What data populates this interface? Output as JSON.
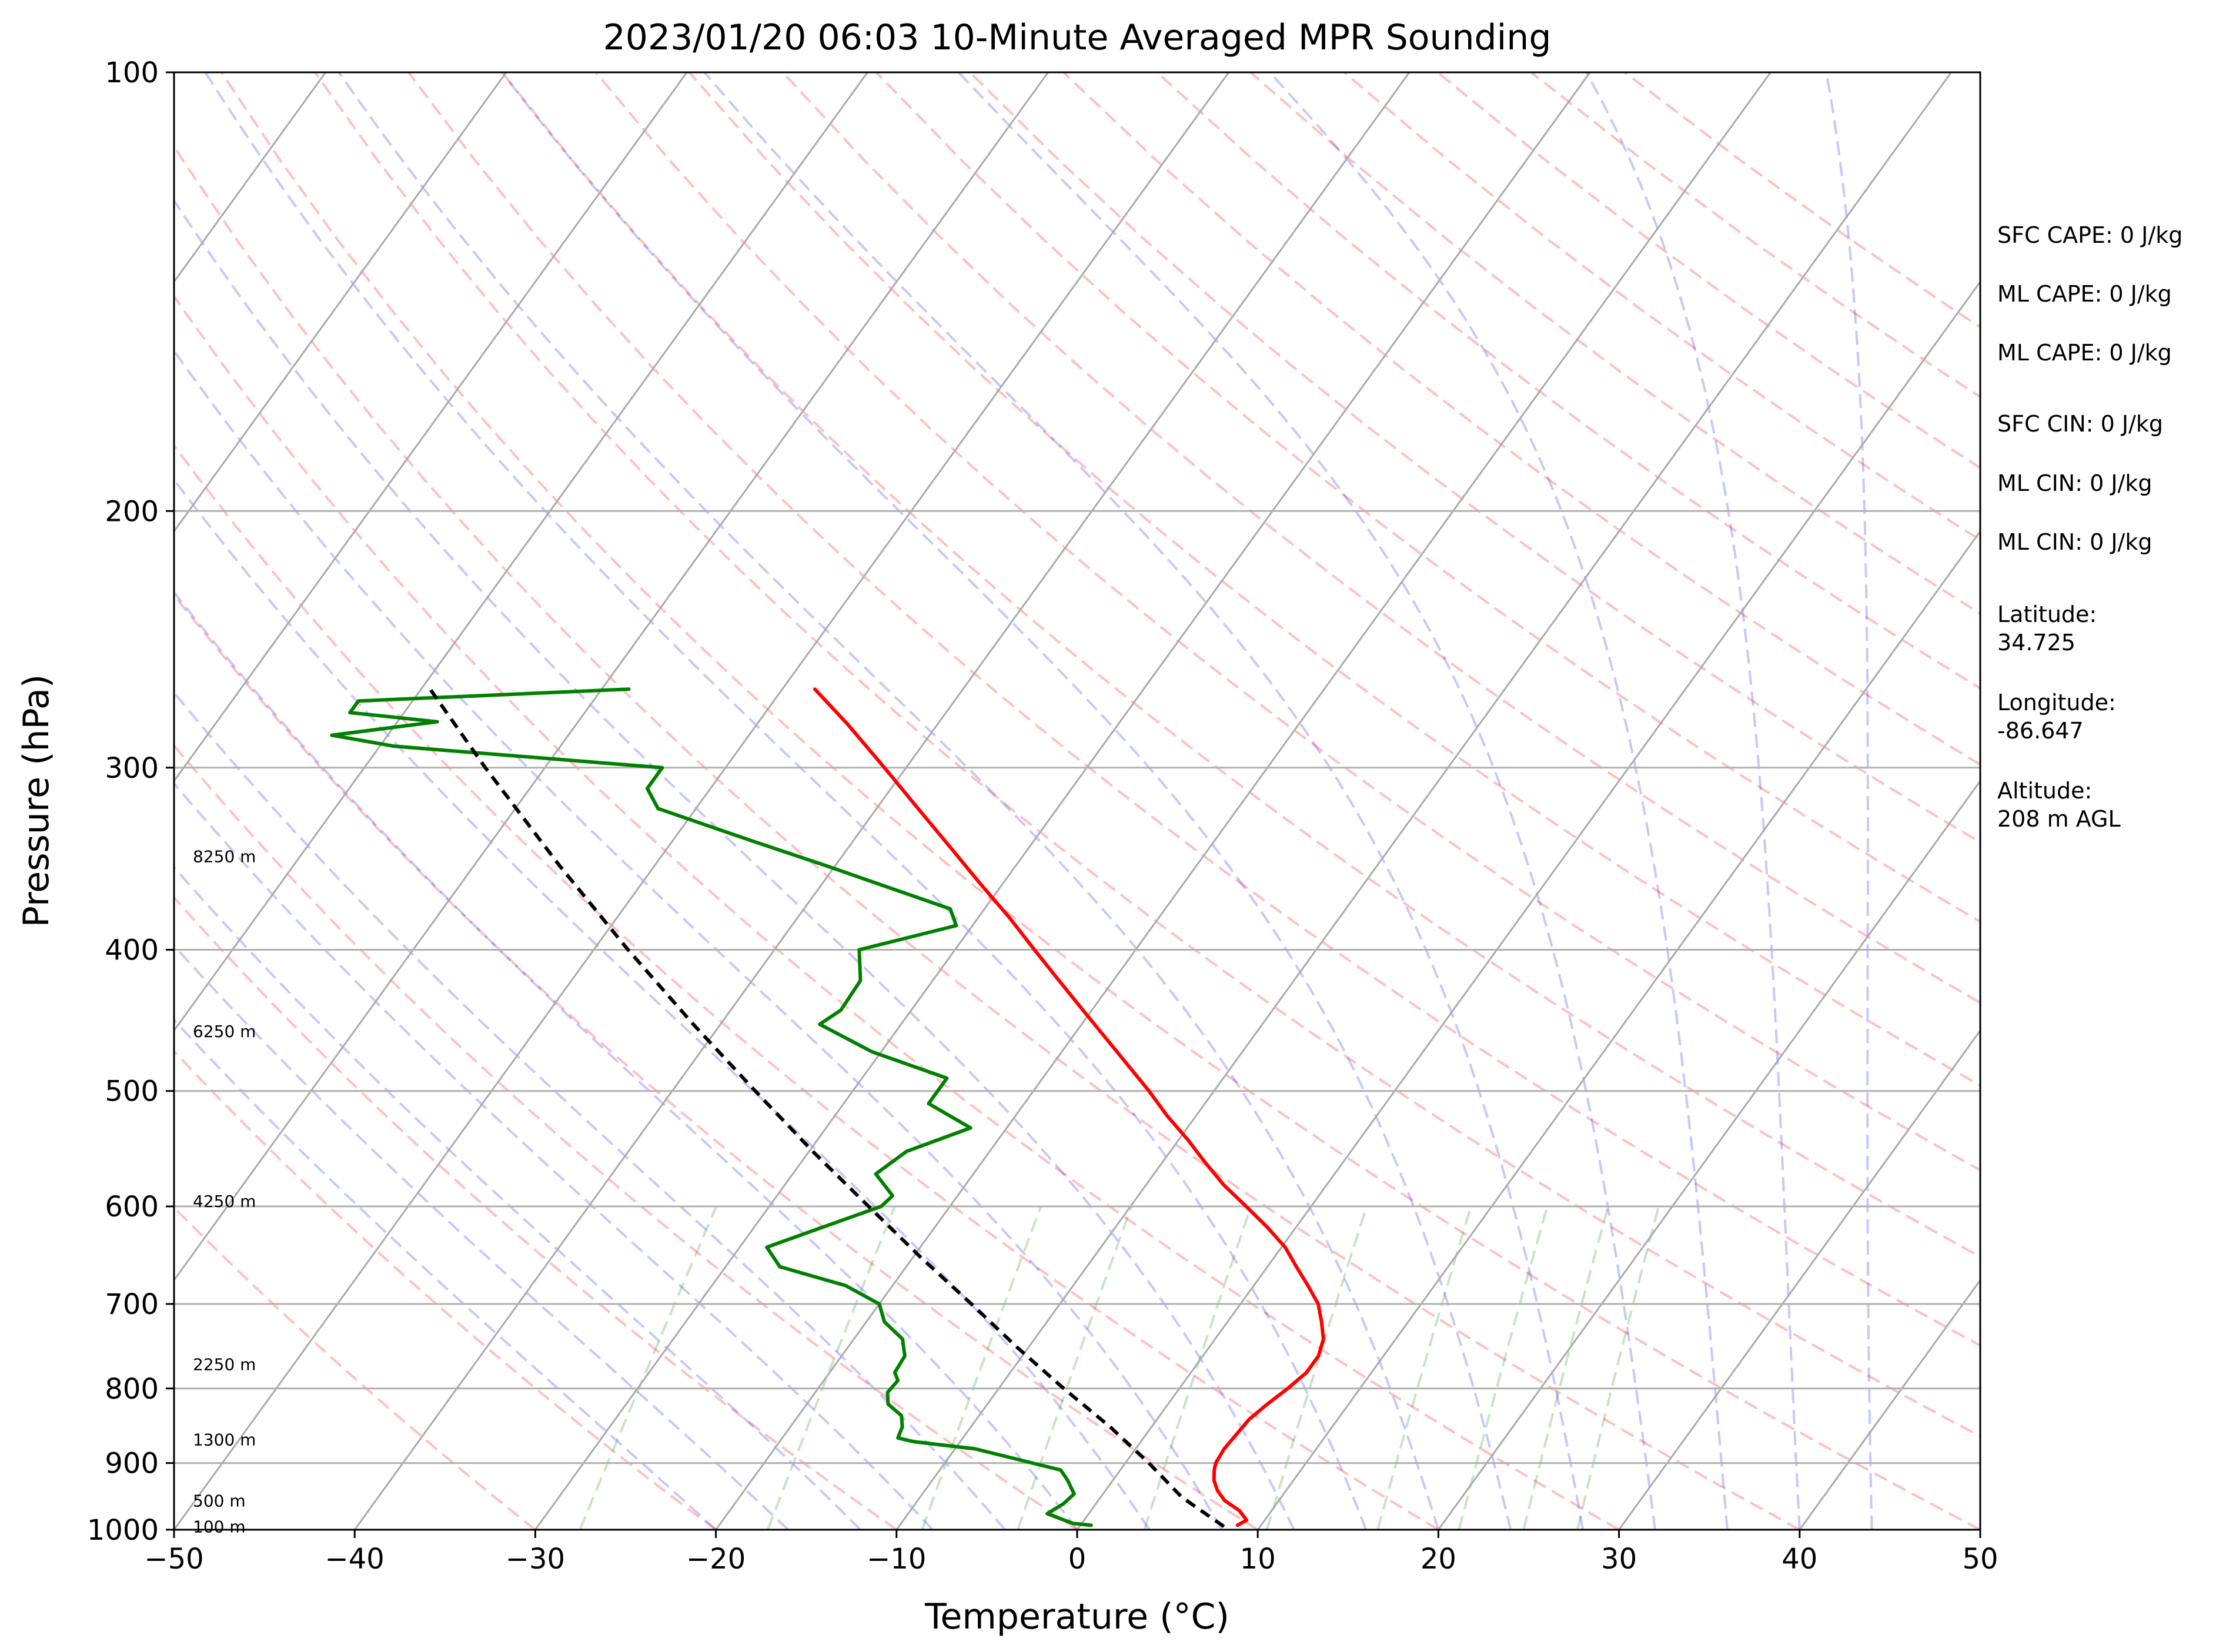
{
  "chart_data": {
    "type": "line",
    "title": "2023/01/20 06:03 10-Minute Averaged MPR Sounding",
    "xlabel": "Temperature (°C)",
    "ylabel": "Pressure (hPa)",
    "xlim": [
      -50,
      50
    ],
    "ylim": [
      1000,
      100
    ],
    "y_scale": "log",
    "skew": true,
    "grid": true,
    "x_ticks": [
      "−50",
      "−40",
      "−30",
      "−20",
      "−10",
      "0",
      "10",
      "20",
      "30",
      "40",
      "50"
    ],
    "x_tick_values": [
      -50,
      -40,
      -30,
      -20,
      -10,
      0,
      10,
      20,
      30,
      40,
      50
    ],
    "y_ticks": [
      "100",
      "200",
      "300",
      "400",
      "500",
      "600",
      "700",
      "800",
      "900",
      "1000"
    ],
    "y_tick_values": [
      100,
      200,
      300,
      400,
      500,
      600,
      700,
      800,
      900,
      1000
    ],
    "series": [
      {
        "color": "#ff0000",
        "points": [
          [
            993,
            8.7
          ],
          [
            985,
            9.0
          ],
          [
            970,
            8.2
          ],
          [
            955,
            7.0
          ],
          [
            940,
            6.2
          ],
          [
            925,
            5.6
          ],
          [
            910,
            5.2
          ],
          [
            900,
            5.0
          ],
          [
            880,
            4.9
          ],
          [
            860,
            5.0
          ],
          [
            840,
            5.1
          ],
          [
            820,
            5.5
          ],
          [
            800,
            6.0
          ],
          [
            780,
            6.4
          ],
          [
            760,
            6.4
          ],
          [
            740,
            6.0
          ],
          [
            720,
            5.2
          ],
          [
            700,
            4.3
          ],
          [
            680,
            3.0
          ],
          [
            660,
            1.6
          ],
          [
            640,
            0.2
          ],
          [
            620,
            -1.6
          ],
          [
            600,
            -3.6
          ],
          [
            580,
            -5.7
          ],
          [
            560,
            -7.6
          ],
          [
            540,
            -9.5
          ],
          [
            520,
            -11.6
          ],
          [
            500,
            -13.6
          ],
          [
            480,
            -15.8
          ],
          [
            460,
            -18.1
          ],
          [
            440,
            -20.5
          ],
          [
            420,
            -23.0
          ],
          [
            400,
            -25.6
          ],
          [
            380,
            -28.3
          ],
          [
            360,
            -31.3
          ],
          [
            340,
            -34.4
          ],
          [
            320,
            -37.7
          ],
          [
            300,
            -41.2
          ],
          [
            280,
            -45.0
          ],
          [
            265,
            -48.2
          ]
        ]
      },
      {
        "color": "#008000",
        "points": [
          [
            993,
            0.6
          ],
          [
            990,
            -0.5
          ],
          [
            975,
            -2.3
          ],
          [
            960,
            -1.8
          ],
          [
            945,
            -1.6
          ],
          [
            925,
            -2.5
          ],
          [
            910,
            -3.3
          ],
          [
            880,
            -8.9
          ],
          [
            870,
            -12.6
          ],
          [
            865,
            -13.6
          ],
          [
            850,
            -13.8
          ],
          [
            835,
            -14.3
          ],
          [
            820,
            -15.5
          ],
          [
            805,
            -16.0
          ],
          [
            790,
            -15.9
          ],
          [
            780,
            -16.4
          ],
          [
            760,
            -16.5
          ],
          [
            740,
            -17.3
          ],
          [
            720,
            -19.0
          ],
          [
            700,
            -20.0
          ],
          [
            680,
            -22.6
          ],
          [
            660,
            -27.0
          ],
          [
            640,
            -28.5
          ],
          [
            620,
            -26.2
          ],
          [
            600,
            -23.8
          ],
          [
            590,
            -23.6
          ],
          [
            570,
            -25.4
          ],
          [
            550,
            -24.6
          ],
          [
            530,
            -22.0
          ],
          [
            510,
            -25.3
          ],
          [
            490,
            -25.3
          ],
          [
            470,
            -30.5
          ],
          [
            450,
            -34.5
          ],
          [
            440,
            -33.9
          ],
          [
            420,
            -34.0
          ],
          [
            400,
            -35.3
          ],
          [
            385,
            -30.9
          ],
          [
            375,
            -31.9
          ],
          [
            350,
            -40.6
          ],
          [
            336,
            -45.9
          ],
          [
            320,
            -52.1
          ],
          [
            310,
            -53.5
          ],
          [
            300,
            -53.5
          ],
          [
            290,
            -69.2
          ],
          [
            285,
            -73.1
          ],
          [
            279,
            -67.8
          ],
          [
            275,
            -73.0
          ],
          [
            270,
            -73.0
          ],
          [
            265,
            -58.5
          ]
        ]
      },
      {
        "color": "#000000",
        "style": "dashed",
        "points": [
          [
            995,
            8.0
          ],
          [
            950,
            4.5
          ],
          [
            900,
            1.3
          ],
          [
            850,
            -2.3
          ],
          [
            800,
            -6.4
          ],
          [
            750,
            -10.6
          ],
          [
            700,
            -14.9
          ],
          [
            650,
            -19.6
          ],
          [
            600,
            -24.5
          ],
          [
            550,
            -29.8
          ],
          [
            500,
            -35.4
          ],
          [
            450,
            -41.5
          ],
          [
            400,
            -48.1
          ],
          [
            350,
            -55.3
          ],
          [
            300,
            -63.3
          ],
          [
            265,
            -69.5
          ]
        ]
      }
    ],
    "annotations": {
      "heights": [
        {
          "label": "8250 m",
          "p": 345
        },
        {
          "label": "6250 m",
          "p": 455
        },
        {
          "label": "4250 m",
          "p": 595
        },
        {
          "label": "2250 m",
          "p": 770
        },
        {
          "label": "1300 m",
          "p": 867
        },
        {
          "label": "500 m",
          "p": 955
        },
        {
          "label": "100 m",
          "p": 995
        }
      ],
      "side": [
        "SFC CAPE: 0 J/kg",
        "ML CAPE: 0 J/kg",
        "ML CAPE: 0 J/kg",
        "SFC CIN: 0 J/kg",
        "ML CIN: 0 J/kg",
        "ML CIN: 0 J/kg",
        "Latitude:\n34.725",
        "Longitude:\n-86.647",
        "Altitude:\n208 m AGL"
      ]
    }
  }
}
